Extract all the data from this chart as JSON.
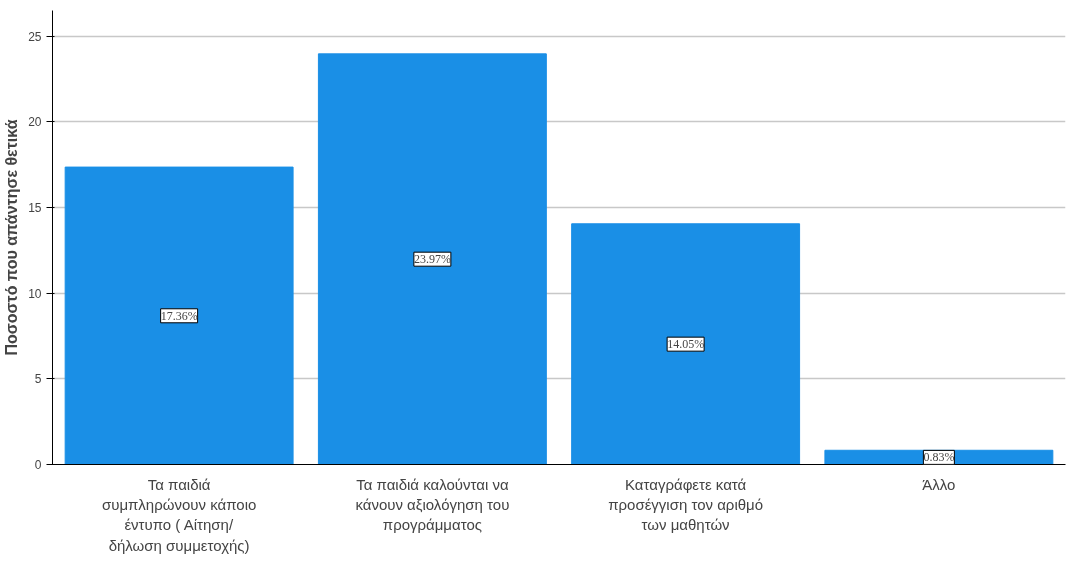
{
  "chart_data": {
    "type": "bar",
    "ylabel": "Ποσοστό που απάντησε θετικά",
    "categories": [
      "Τα παιδιά\nσυμπληρώνουν κάποιο\nέντυπο ( Αίτηση/\nδήλωση συμμετοχής)",
      "Τα παιδιά καλούνται να\nκάνουν αξιολόγηση του\nπρογράμματος",
      "Καταγράφετε κατά\nπροσέγγιση τον αριθμό\nτων μαθητών",
      "Άλλο"
    ],
    "values": [
      17.36,
      23.97,
      14.05,
      0.83
    ],
    "value_labels": [
      "17.36%",
      "23.97%",
      "14.05%",
      "0.83%"
    ],
    "color": "#1a8fe6",
    "ylim": [
      0,
      26.5
    ],
    "yticks": [
      0,
      5,
      10,
      15,
      20,
      25
    ],
    "grid": "y"
  }
}
